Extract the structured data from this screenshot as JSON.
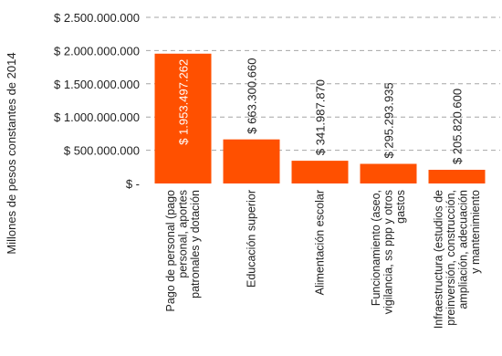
{
  "chart_data": {
    "type": "bar",
    "ylabel": "Millones de pesos constantes de 2014",
    "ylim": [
      0,
      2500000000
    ],
    "y_ticks": [
      0,
      500000000,
      1000000000,
      1500000000,
      2000000000,
      2500000000
    ],
    "y_tick_labels": [
      "$ -",
      "$ 500.000.000",
      "$ 1.000.000.000",
      "$ 1.500.000.000",
      "$ 2.000.000.000",
      "$ 2.500.000.000"
    ],
    "grid": true,
    "bar_color": "#ff5000",
    "categories": [
      [
        "Pago de personal (pago",
        "personal, aportes",
        "patronales y dotación"
      ],
      [
        "Educación superior"
      ],
      [
        "Alimentación escolar"
      ],
      [
        "Funcionamiento (aseo,",
        "vigilancia, ss ppp y otros",
        "gastos"
      ],
      [
        "Infraestructura (estudios de",
        "preinversión, construcción,",
        "ampliación, adecuación",
        "y mantenimiento"
      ]
    ],
    "values": [
      1953497262,
      663300660,
      341987870,
      295293935,
      205820600
    ],
    "data_labels": [
      "$ 1.953.497.262",
      "$ 663.300.660",
      "$ 341.987.870",
      "$ 295.293.935",
      "$ 205.820.600"
    ]
  }
}
